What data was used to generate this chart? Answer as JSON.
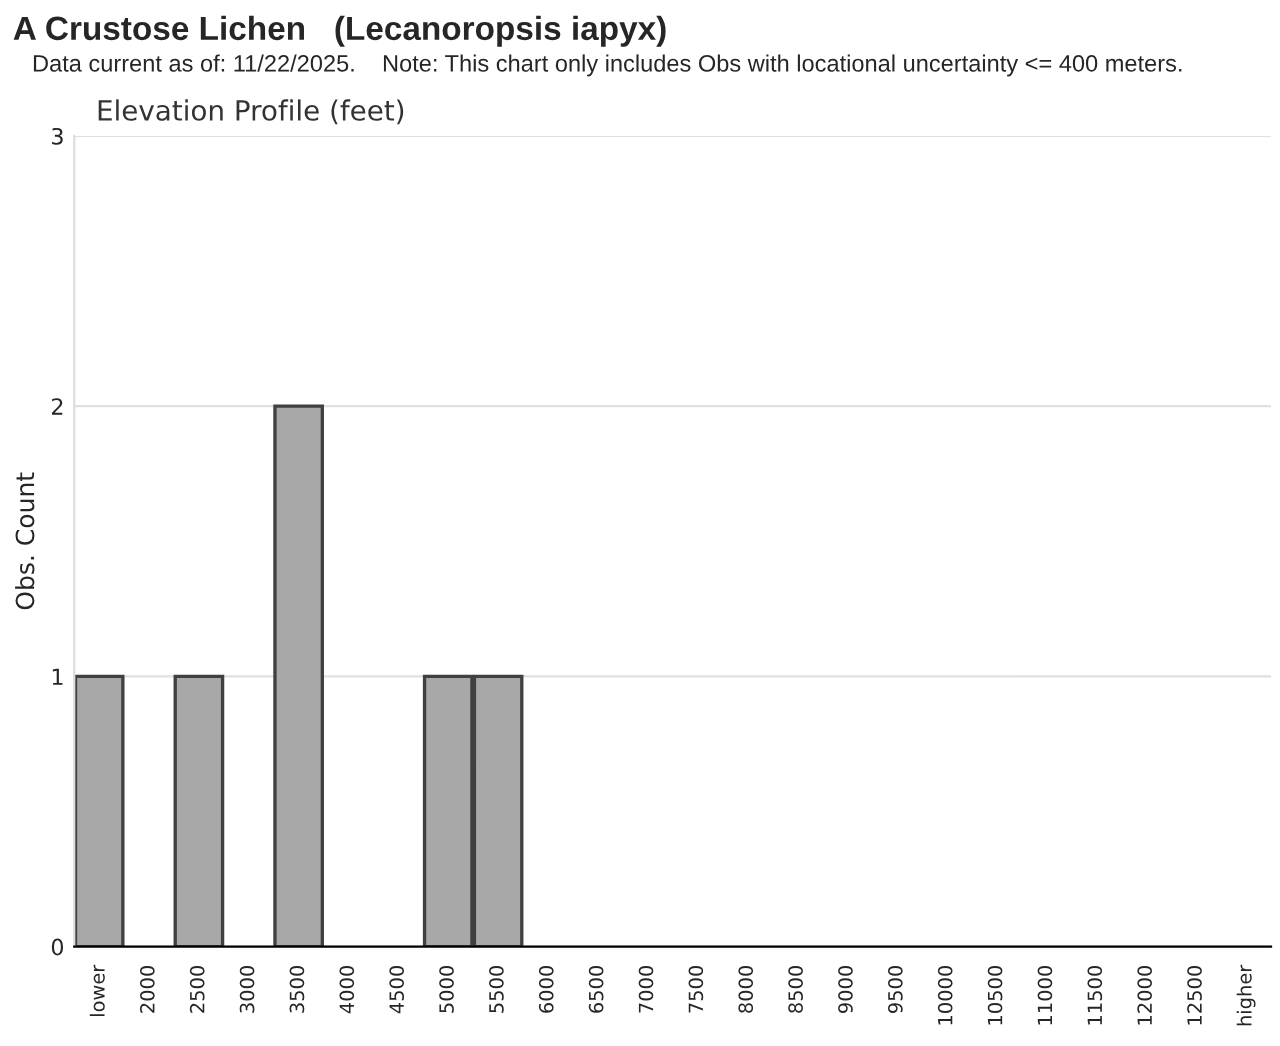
{
  "chart_data": {
    "type": "bar",
    "title": "A Crustose Lichen   (Lecanoropsis iapyx)",
    "subtitle": "Data current as of: 11/22/2025.    Note: This chart only includes Obs with locational uncertainty <= 400 meters.",
    "annotations": [
      "Elevation Profile (feet)"
    ],
    "ylabel": "Obs. Count",
    "categories": [
      "lower",
      "2000",
      "2500",
      "3000",
      "3500",
      "4000",
      "4500",
      "5000",
      "5500",
      "6000",
      "6500",
      "7000",
      "7500",
      "8000",
      "8500",
      "9000",
      "9500",
      "10000",
      "10500",
      "11000",
      "11500",
      "12000",
      "12500",
      "higher"
    ],
    "values": [
      1,
      0,
      1,
      0,
      2,
      0,
      0,
      1,
      1,
      0,
      0,
      0,
      0,
      0,
      0,
      0,
      0,
      0,
      0,
      0,
      0,
      0,
      0,
      0
    ],
    "color": "#a8a8a8",
    "ylim": [
      0,
      3
    ],
    "yticks": [
      0,
      1,
      2,
      3
    ],
    "grid": "y"
  }
}
